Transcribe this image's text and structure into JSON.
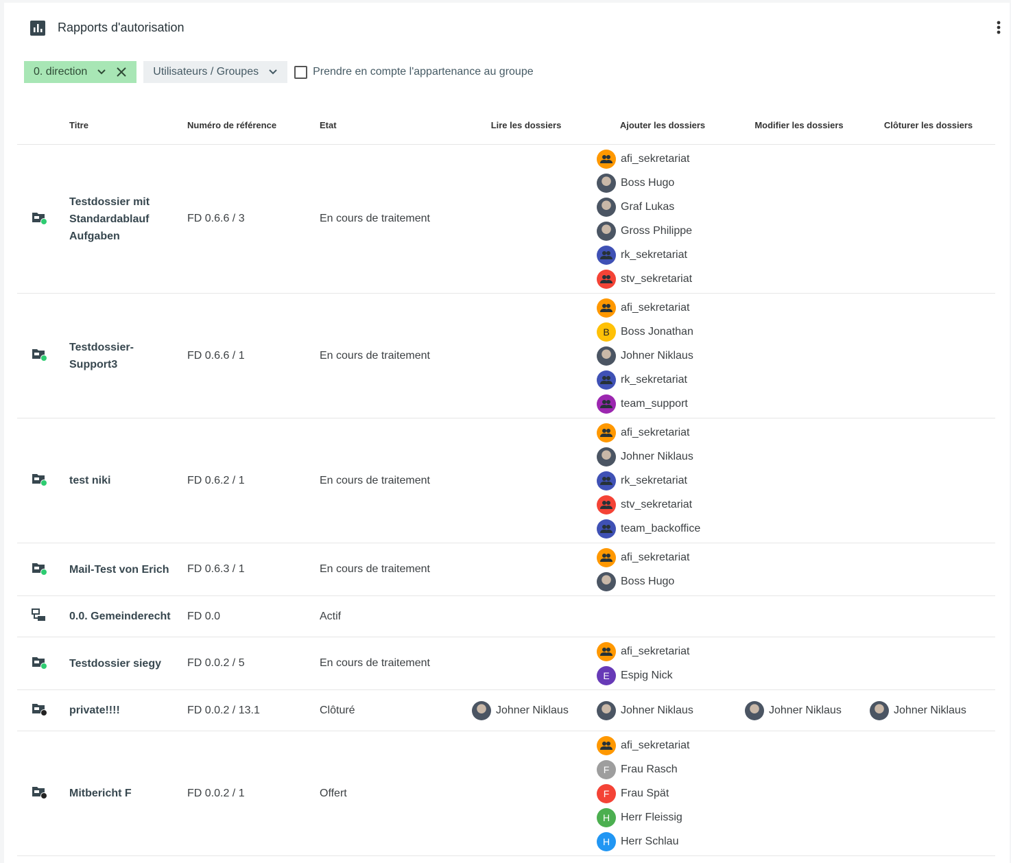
{
  "header": {
    "title": "Rapports d'autorisation"
  },
  "filters": {
    "chip": "0. direction",
    "dropdown": "Utilisateurs / Groupes",
    "checkbox": "Prendre en compte l'appartenance au groupe"
  },
  "table": {
    "columns": [
      "Titre",
      "Numéro de référence",
      "Etat",
      "Lire les dossiers",
      "Ajouter les dossiers",
      "Modifier les dossiers",
      "Clôturer les dossiers"
    ],
    "rows": [
      {
        "icon": "dossier-active",
        "title": "Testdossier mit Standardablauf Aufgaben",
        "reference": "FD 0.6.6 / 3",
        "state": "En cours de traitement",
        "read": [],
        "add": [
          {
            "name": "afi_sekretariat",
            "avatar": "group",
            "color": "#ff9800"
          },
          {
            "name": "Boss Hugo",
            "avatar": "photo"
          },
          {
            "name": "Graf Lukas",
            "avatar": "photo"
          },
          {
            "name": "Gross Philippe",
            "avatar": "photo"
          },
          {
            "name": "rk_sekretariat",
            "avatar": "group",
            "color": "#3f51b5"
          },
          {
            "name": "stv_sekretariat",
            "avatar": "group",
            "color": "#f44336"
          }
        ],
        "modify": [],
        "close": []
      },
      {
        "icon": "dossier-active",
        "title": "Testdossier-Support3",
        "reference": "FD 0.6.6 / 1",
        "state": "En cours de traitement",
        "read": [],
        "add": [
          {
            "name": "afi_sekretariat",
            "avatar": "group",
            "color": "#ff9800"
          },
          {
            "name": "Boss Jonathan",
            "avatar": "letter",
            "initial": "B",
            "color": "#ffc107"
          },
          {
            "name": "Johner Niklaus",
            "avatar": "photo"
          },
          {
            "name": "rk_sekretariat",
            "avatar": "group",
            "color": "#3f51b5"
          },
          {
            "name": "team_support",
            "avatar": "group",
            "color": "#9c27b0"
          }
        ],
        "modify": [],
        "close": []
      },
      {
        "icon": "dossier-active",
        "title": "test niki",
        "reference": "FD 0.6.2 / 1",
        "state": "En cours de traitement",
        "read": [],
        "add": [
          {
            "name": "afi_sekretariat",
            "avatar": "group",
            "color": "#ff9800"
          },
          {
            "name": "Johner Niklaus",
            "avatar": "photo"
          },
          {
            "name": "rk_sekretariat",
            "avatar": "group",
            "color": "#3f51b5"
          },
          {
            "name": "stv_sekretariat",
            "avatar": "group",
            "color": "#f44336"
          },
          {
            "name": "team_backoffice",
            "avatar": "group",
            "color": "#3f51b5"
          }
        ],
        "modify": [],
        "close": []
      },
      {
        "icon": "dossier-active",
        "title": "Mail-Test von Erich",
        "reference": "FD 0.6.3 / 1",
        "state": "En cours de traitement",
        "read": [],
        "add": [
          {
            "name": "afi_sekretariat",
            "avatar": "group",
            "color": "#ff9800"
          },
          {
            "name": "Boss Hugo",
            "avatar": "photo"
          }
        ],
        "modify": [],
        "close": []
      },
      {
        "icon": "repository",
        "title": "0.0. Gemeinderecht",
        "reference": "FD 0.0",
        "state": "Actif",
        "read": [],
        "add": [],
        "modify": [],
        "close": []
      },
      {
        "icon": "dossier-active",
        "title": "Testdossier siegy",
        "reference": "FD 0.0.2 / 5",
        "state": "En cours de traitement",
        "read": [],
        "add": [
          {
            "name": "afi_sekretariat",
            "avatar": "group",
            "color": "#ff9800"
          },
          {
            "name": "Espig Nick",
            "avatar": "letter",
            "initial": "E",
            "color": "#673ab7"
          }
        ],
        "modify": [],
        "close": []
      },
      {
        "icon": "dossier-closed",
        "title": "private!!!!",
        "reference": "FD 0.0.2 / 13.1",
        "state": "Clôturé",
        "read": [
          {
            "name": "Johner Niklaus",
            "avatar": "photo"
          }
        ],
        "add": [
          {
            "name": "Johner Niklaus",
            "avatar": "photo"
          }
        ],
        "modify": [
          {
            "name": "Johner Niklaus",
            "avatar": "photo"
          }
        ],
        "close": [
          {
            "name": "Johner Niklaus",
            "avatar": "photo"
          }
        ]
      },
      {
        "icon": "dossier-closed",
        "title": "Mitbericht F",
        "reference": "FD 0.0.2 / 1",
        "state": "Offert",
        "read": [],
        "add": [
          {
            "name": "afi_sekretariat",
            "avatar": "group",
            "color": "#ff9800"
          },
          {
            "name": "Frau Rasch",
            "avatar": "letter",
            "initial": "F",
            "color": "#9e9e9e"
          },
          {
            "name": "Frau Spät",
            "avatar": "letter",
            "initial": "F",
            "color": "#f44336"
          },
          {
            "name": "Herr Fleissig",
            "avatar": "letter",
            "initial": "H",
            "color": "#4caf50"
          },
          {
            "name": "Herr Schlau",
            "avatar": "letter",
            "initial": "H",
            "color": "#2196f3"
          }
        ],
        "modify": [],
        "close": []
      }
    ]
  }
}
